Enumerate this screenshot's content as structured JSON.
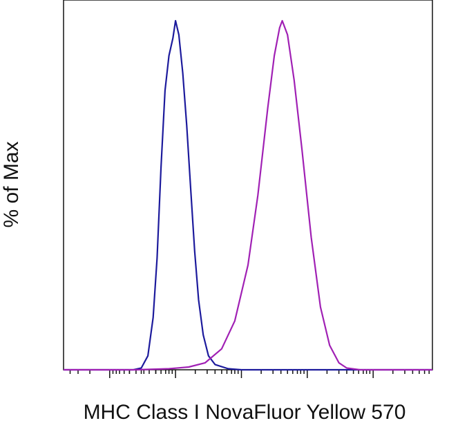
{
  "chart_data": {
    "type": "line",
    "title": "",
    "xlabel": "MHC Class I NovaFluor Yellow 570",
    "ylabel": "% of Max",
    "xscale": "biexponential",
    "xlim": [
      -1.7,
      3.9
    ],
    "ylim": [
      0,
      100
    ],
    "grid": false,
    "legend": "none",
    "series": [
      {
        "color": "#1c1a9c",
        "points": [
          [
            -1.7,
            0
          ],
          [
            -0.64,
            0
          ],
          [
            -0.52,
            0.5
          ],
          [
            -0.42,
            4
          ],
          [
            -0.34,
            15
          ],
          [
            -0.28,
            32
          ],
          [
            -0.22,
            58
          ],
          [
            -0.16,
            80
          ],
          [
            -0.1,
            90
          ],
          [
            -0.04,
            95
          ],
          [
            0.0,
            100
          ],
          [
            0.05,
            96
          ],
          [
            0.11,
            85
          ],
          [
            0.17,
            70
          ],
          [
            0.23,
            52
          ],
          [
            0.29,
            34
          ],
          [
            0.35,
            20
          ],
          [
            0.42,
            10
          ],
          [
            0.5,
            4
          ],
          [
            0.6,
            1.5
          ],
          [
            0.8,
            0.3
          ],
          [
            1.0,
            0
          ],
          [
            3.9,
            0
          ]
        ]
      },
      {
        "color": "#a020b4",
        "points": [
          [
            -1.7,
            0
          ],
          [
            -0.6,
            0
          ],
          [
            -0.1,
            0.3
          ],
          [
            0.2,
            0.8
          ],
          [
            0.45,
            2
          ],
          [
            0.7,
            6
          ],
          [
            0.9,
            14
          ],
          [
            1.1,
            30
          ],
          [
            1.25,
            50
          ],
          [
            1.4,
            75
          ],
          [
            1.5,
            90
          ],
          [
            1.58,
            98
          ],
          [
            1.62,
            100
          ],
          [
            1.7,
            96
          ],
          [
            1.8,
            83
          ],
          [
            1.92,
            63
          ],
          [
            2.06,
            38
          ],
          [
            2.2,
            18
          ],
          [
            2.34,
            7
          ],
          [
            2.48,
            2
          ],
          [
            2.6,
            0.5
          ],
          [
            2.8,
            0
          ],
          [
            3.9,
            0
          ]
        ]
      }
    ]
  }
}
